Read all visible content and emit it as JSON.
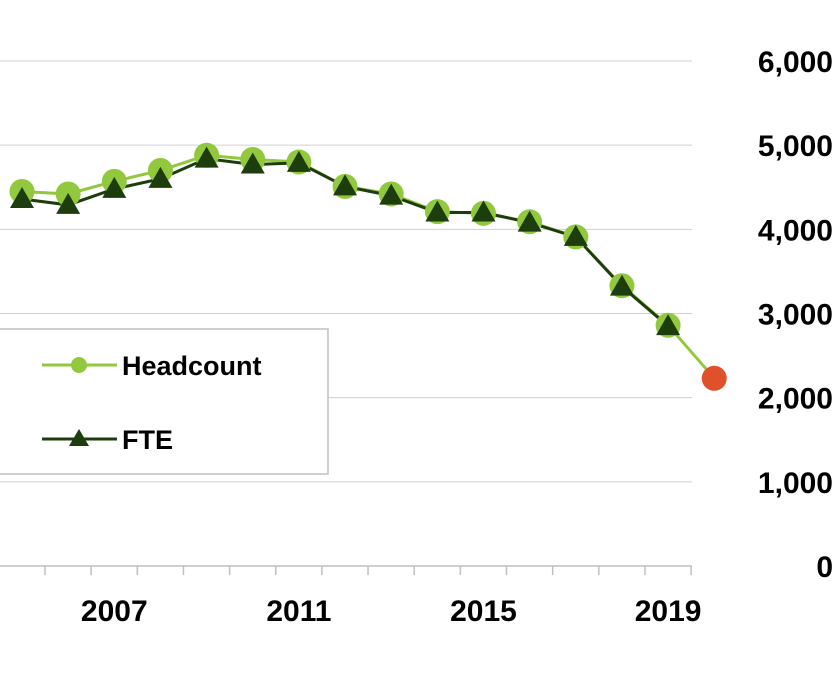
{
  "chart_data": {
    "type": "line",
    "x": [
      2005,
      2006,
      2007,
      2008,
      2009,
      2010,
      2011,
      2012,
      2013,
      2014,
      2015,
      2016,
      2017,
      2018,
      2019,
      2020
    ],
    "series": [
      {
        "name": "Headcount",
        "values": [
          4450,
          4420,
          4570,
          4700,
          4880,
          4830,
          4800,
          4510,
          4420,
          4210,
          4190,
          4090,
          3910,
          3330,
          2860,
          2230
        ],
        "color": "#92c83e",
        "marker": "circle"
      },
      {
        "name": "FTE",
        "values": [
          4360,
          4290,
          4480,
          4600,
          4840,
          4770,
          4790,
          4510,
          4400,
          4200,
          4200,
          4080,
          3910,
          3320,
          2850,
          null
        ],
        "color": "#1e3d0c",
        "marker": "triangle"
      }
    ],
    "highlight_point": {
      "x": 2020,
      "y": 2230,
      "color": "#e0502a"
    },
    "y_tick_labels": [
      "0",
      "1,000",
      "2,000",
      "3,000",
      "4,000",
      "5,000",
      "6,000"
    ],
    "y_ticks": [
      0,
      1000,
      2000,
      3000,
      4000,
      5000,
      6000
    ],
    "x_tick_labels": [
      "2007",
      "2011",
      "2015",
      "2019"
    ],
    "x_ticks": [
      2007,
      2011,
      2015,
      2019
    ],
    "ylim": [
      0,
      6000
    ],
    "y_axis_side": "right",
    "grid": true,
    "legend_position": "left",
    "title": "",
    "xlabel": "",
    "ylabel": ""
  }
}
